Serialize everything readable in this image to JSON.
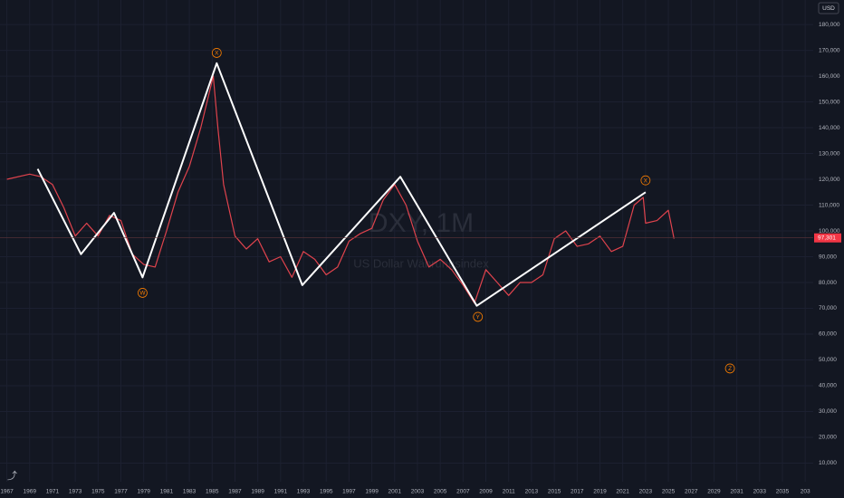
{
  "chart_data": {
    "type": "line",
    "currency": "USD",
    "watermark": "DXY, 1M",
    "watermark_sub": "US Dollar Währungsindex",
    "last_price": {
      "value": 97.301,
      "label": "97,301"
    },
    "xlim": [
      1966.4,
      2037.7
    ],
    "ylim": [
      0,
      189.5
    ],
    "xticks": [
      1967,
      1969,
      1971,
      1973,
      1975,
      1977,
      1979,
      1981,
      1983,
      1985,
      1987,
      1989,
      1991,
      1993,
      1995,
      1997,
      1999,
      2001,
      2003,
      2005,
      2007,
      2009,
      2011,
      2013,
      2015,
      2017,
      2019,
      2021,
      2023,
      2025,
      2027,
      2029,
      2031,
      2033,
      2035,
      {
        "value": 2037,
        "label": "203"
      }
    ],
    "yticks": [
      {
        "value": 10,
        "label": "10,000"
      },
      {
        "value": 20,
        "label": "20,000"
      },
      {
        "value": 30,
        "label": "30,000"
      },
      {
        "value": 40,
        "label": "40,000"
      },
      {
        "value": 50,
        "label": "50,000"
      },
      {
        "value": 60,
        "label": "60,000"
      },
      {
        "value": 70,
        "label": "70,000"
      },
      {
        "value": 80,
        "label": "80,000"
      },
      {
        "value": 90,
        "label": "90,000"
      },
      {
        "value": 100,
        "label": "100,000"
      },
      {
        "value": 110,
        "label": "110,000"
      },
      {
        "value": 120,
        "label": "120,000"
      },
      {
        "value": 130,
        "label": "130,000"
      },
      {
        "value": 140,
        "label": "140,000"
      },
      {
        "value": 150,
        "label": "150,000"
      },
      {
        "value": 160,
        "label": "160,000"
      },
      {
        "value": 170,
        "label": "170,000"
      },
      {
        "value": 180,
        "label": "180,000"
      }
    ],
    "series": [
      {
        "color": "#e0434d",
        "x": [
          1967,
          1969,
          1970,
          1971,
          1972,
          1973,
          1974,
          1975,
          1976,
          1977,
          1978,
          1979,
          1980,
          1981,
          1982,
          1983,
          1984,
          1985.1,
          1985.5,
          1986,
          1987,
          1988,
          1989,
          1990,
          1991,
          1992,
          1993,
          1994,
          1995,
          1996,
          1997,
          1998,
          1999,
          2000,
          2001,
          2002,
          2003,
          2004,
          2005,
          2006,
          2007,
          2008,
          2009,
          2010,
          2011,
          2012,
          2013,
          2014,
          2015,
          2016,
          2017,
          2018,
          2019,
          2020,
          2021,
          2022,
          2022.8,
          2023,
          2024,
          2025,
          2025.5
        ],
        "values": [
          120,
          122,
          121,
          118,
          109,
          98,
          103,
          98,
          106,
          104,
          91,
          87,
          86,
          100,
          115,
          125,
          140,
          160,
          140,
          118,
          98,
          93,
          97,
          88,
          90,
          82,
          92,
          89,
          83,
          86,
          96,
          99,
          101,
          112,
          118,
          110,
          96,
          86,
          89,
          85,
          79,
          72,
          85,
          80,
          75,
          80,
          80,
          83,
          97,
          100,
          94,
          95,
          98,
          92,
          94,
          110,
          113,
          103,
          104,
          108,
          97
        ]
      },
      {
        "color": "#ffffff",
        "x": [
          1969.7,
          1973.5,
          1976.4,
          1978.9,
          1985.4,
          1992.9,
          2001.5,
          2008.2,
          2023
        ],
        "values": [
          124,
          91,
          107,
          82,
          165,
          79,
          121,
          71,
          115
        ]
      }
    ],
    "annotations": [
      {
        "text": "W",
        "x": 1978.9,
        "y": 76
      },
      {
        "text": "X",
        "x": 1985.4,
        "y": 169
      },
      {
        "text": "Y",
        "x": 2008.3,
        "y": 66.7
      },
      {
        "text": "X",
        "x": 2023,
        "y": 119.6
      },
      {
        "text": "Z",
        "x": 2030.4,
        "y": 46.7
      }
    ]
  }
}
